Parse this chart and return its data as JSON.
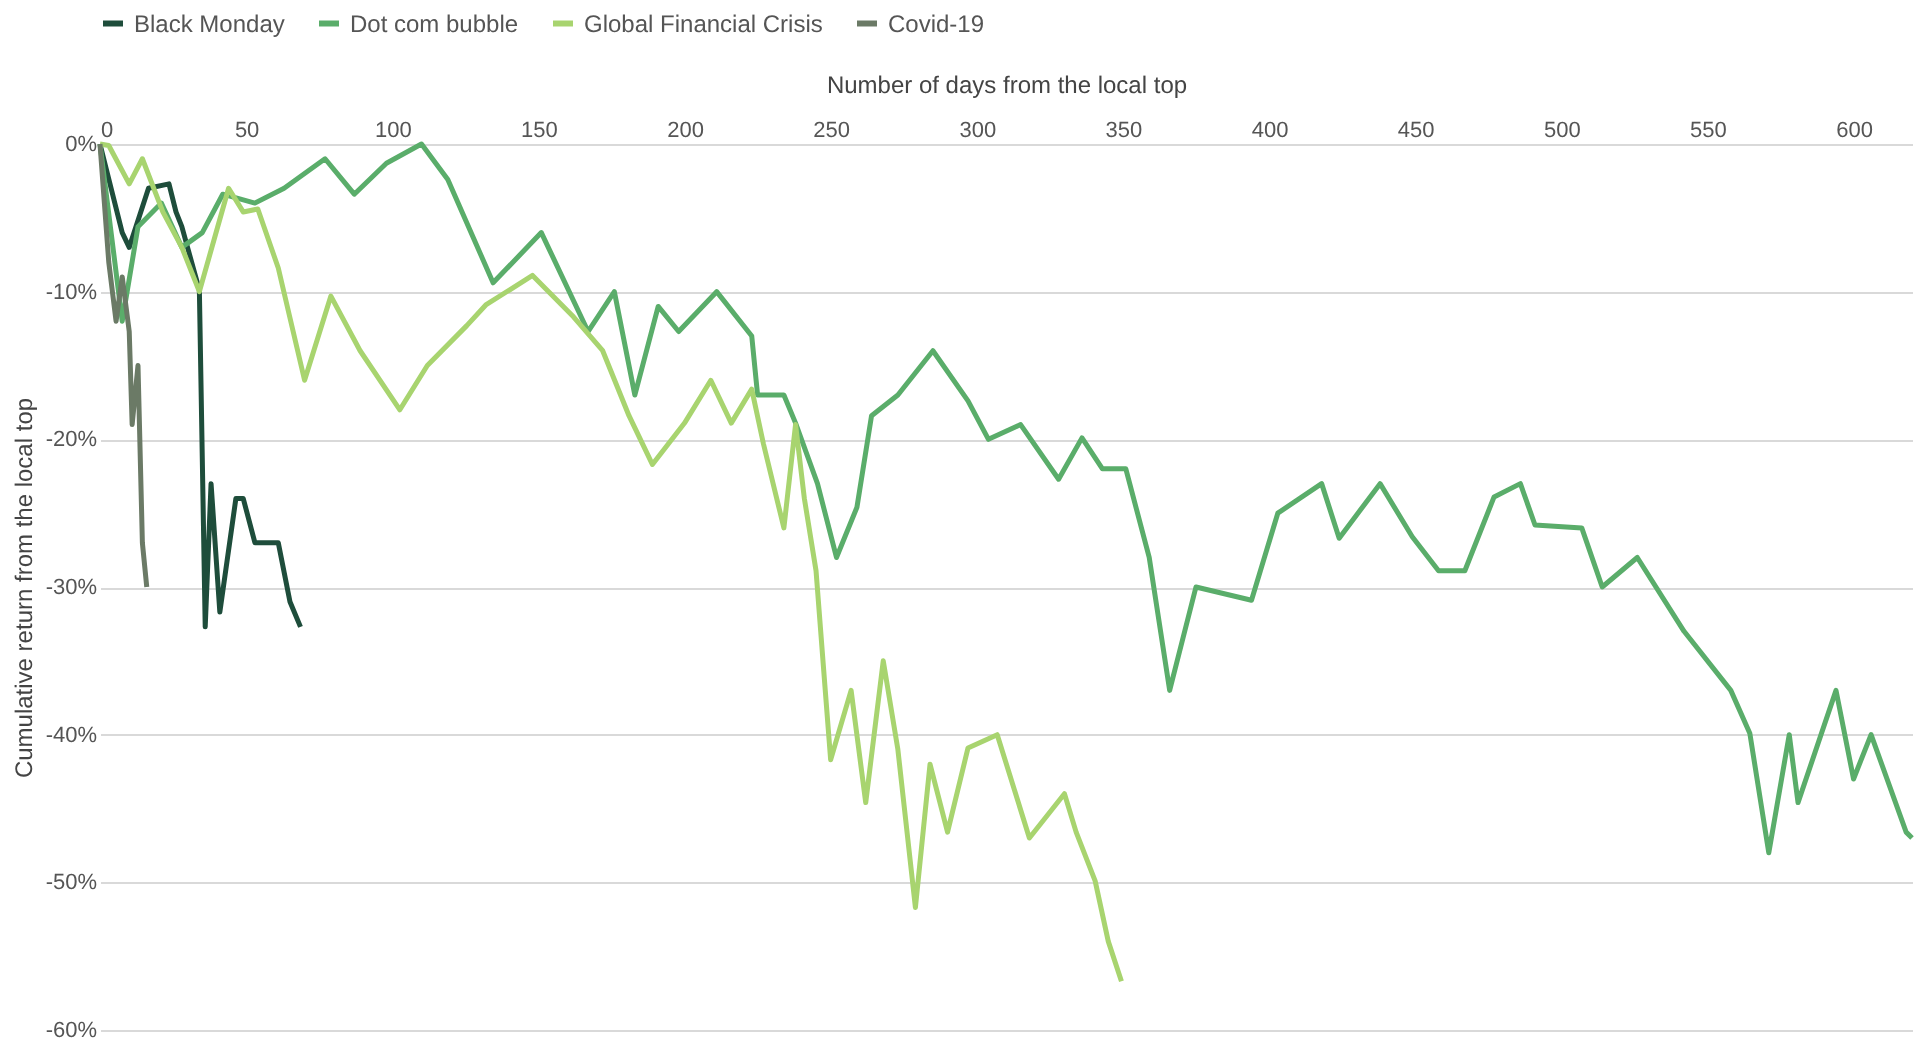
{
  "chart_data": {
    "type": "line",
    "xlabel": "Number of days from the local top",
    "ylabel": "Cumulative return from the local top",
    "xlim": [
      0,
      620
    ],
    "xticks": [
      0,
      50,
      100,
      150,
      200,
      250,
      300,
      350,
      400,
      450,
      500,
      550,
      600
    ],
    "ylim": [
      -60,
      0
    ],
    "yticks": [
      {
        "value": 0,
        "label": "0%"
      },
      {
        "value": -10,
        "label": "-10%"
      },
      {
        "value": -20,
        "label": "-20%"
      },
      {
        "value": -30,
        "label": "-30%"
      },
      {
        "value": -40,
        "label": "-40%"
      },
      {
        "value": -50,
        "label": "-50%"
      },
      {
        "value": -60,
        "label": "-60%"
      }
    ],
    "grid": "y",
    "legend": "top",
    "marker": "none",
    "line_style": "solid",
    "series": [
      {
        "name": "Black Monday",
        "color": "#1e4d3b",
        "x": [
          0,
          7.6,
          10,
          16.6,
          23.6,
          26,
          28,
          34,
          36,
          38,
          41,
          46.5,
          49,
          53,
          56,
          61,
          63,
          65,
          68.6
        ],
        "values": [
          0,
          -6,
          -7,
          -3,
          -2.7,
          -4.6,
          -5.6,
          -9.9,
          -32.7,
          -23,
          -31.7,
          -24,
          -24,
          -27,
          -27,
          -27,
          -29,
          -31,
          -32.7
        ]
      },
      {
        "name": "Dot com bubble",
        "color": "#5aad6a",
        "x": [
          0,
          7.6,
          13,
          21,
          28,
          35,
          42,
          53,
          63,
          77,
          87,
          98,
          110,
          119,
          134.5,
          151,
          167,
          176,
          183,
          191,
          198,
          211,
          223,
          225,
          234,
          238,
          245.5,
          252,
          259,
          264,
          273,
          285,
          297,
          304,
          315,
          328,
          336,
          343,
          351,
          359,
          366,
          375,
          394,
          403,
          418,
          424,
          438,
          449,
          458,
          467,
          477,
          486,
          491,
          507,
          514,
          526,
          542,
          558,
          564.5,
          571,
          578,
          581,
          594,
          600,
          606,
          618,
          620
        ],
        "values": [
          0,
          -12,
          -5.6,
          -4,
          -7,
          -6,
          -3.4,
          -4,
          -3,
          -1,
          -3.4,
          -1.3,
          0,
          -2.4,
          -9.4,
          -6,
          -12.7,
          -10,
          -17,
          -11,
          -12.7,
          -10,
          -13,
          -17,
          -17,
          -18.9,
          -23,
          -28,
          -24.6,
          -18.4,
          -17,
          -14,
          -17.4,
          -20,
          -19,
          -22.7,
          -19.9,
          -22,
          -22,
          -28,
          -37,
          -30,
          -30.9,
          -25,
          -23,
          -26.7,
          -23,
          -26.6,
          -28.9,
          -28.9,
          -23.9,
          -23,
          -25.8,
          -26,
          -30,
          -28,
          -33,
          -37,
          -39.9,
          -48,
          -40,
          -44.6,
          -37,
          -43,
          -40,
          -46.6,
          -47
        ]
      },
      {
        "name": "Global Financial Crisis",
        "color": "#a8d46f",
        "x": [
          0,
          3,
          10,
          14.5,
          21.5,
          28,
          34,
          44,
          49,
          54,
          61,
          70,
          79,
          89,
          102.6,
          112,
          125.5,
          132,
          148,
          162,
          172,
          181,
          189,
          200,
          209,
          216,
          223,
          227,
          234,
          238,
          241,
          245,
          248,
          250,
          257,
          262,
          268,
          273,
          279,
          284,
          290,
          297,
          307,
          318,
          330,
          334,
          340.5,
          345,
          349.5
        ],
        "values": [
          0,
          -0.1,
          -2.7,
          -1,
          -4.6,
          -7,
          -10,
          -3,
          -4.6,
          -4.4,
          -8.4,
          -16,
          -10.3,
          -14,
          -18,
          -15,
          -12.3,
          -10.9,
          -8.9,
          -11.7,
          -14,
          -18.4,
          -21.7,
          -18.9,
          -16,
          -18.9,
          -16.6,
          -20.3,
          -26,
          -19,
          -24,
          -28.9,
          -36.6,
          -41.7,
          -37,
          -44.6,
          -35,
          -41,
          -51.7,
          -42,
          -46.6,
          -40.9,
          -40,
          -47,
          -44,
          -46.6,
          -49.9,
          -54,
          -56.7
        ]
      },
      {
        "name": "Covid-19",
        "color": "#6b7a66",
        "x": [
          0,
          3,
          5.5,
          7.6,
          10,
          11,
          13,
          14.5,
          16
        ],
        "values": [
          0,
          -8,
          -12,
          -9,
          -12.7,
          -19,
          -15,
          -27,
          -30
        ]
      }
    ]
  }
}
